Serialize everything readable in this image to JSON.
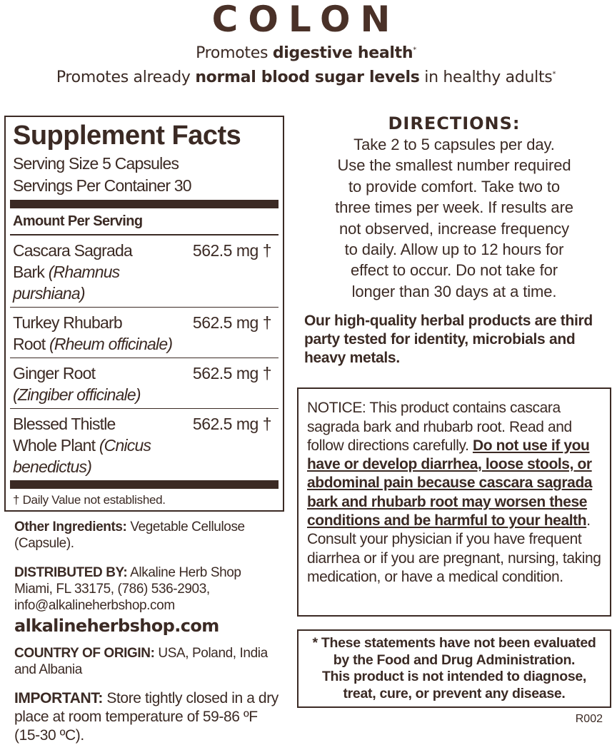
{
  "title": "COLON",
  "taglines": [
    {
      "pre": "Promotes ",
      "bold": "digestive health",
      "post": "",
      "mark": "*"
    },
    {
      "pre": "Promotes already ",
      "bold": "normal blood sugar levels",
      "post": " in healthy adults",
      "mark": "*"
    }
  ],
  "facts": {
    "heading": "Supplement Facts",
    "serving_size": "Serving Size 5 Capsules",
    "servings_per_container": "Servings Per Container 30",
    "amount_header": "Amount Per Serving",
    "ingredients": [
      {
        "name": "Cascara Sagrada",
        "name2": "Bark ",
        "latin": "(Rhamnus purshiana)",
        "amount": "562.5 mg †"
      },
      {
        "name": "Turkey Rhubarb",
        "name2": "Root ",
        "latin": "(Rheum officinale)",
        "amount": "562.5 mg †"
      },
      {
        "name": "Ginger Root",
        "name2": "",
        "latin": "(Zingiber officinale)",
        "amount": "562.5 mg †"
      },
      {
        "name": "Blessed Thistle",
        "name2": "Whole Plant ",
        "latin": "(Cnicus benedictus)",
        "amount": "562.5 mg †"
      }
    ],
    "footnote": "† Daily Value not established."
  },
  "other": {
    "label": "Other Ingredients:",
    "text": " Vegetable Cellulose (Capsule)."
  },
  "distributor": {
    "label": "DISTRIBUTED BY:",
    "text": " Alkaline Herb Shop Miami, FL 33175, (786) 536-2903, info@alkalineherbshop.com"
  },
  "website": "alkalineherbshop.com",
  "origin": {
    "label": "COUNTRY OF ORIGIN:",
    "text": " USA, Poland, India and Albania"
  },
  "important": {
    "label": "IMPORTANT:",
    "text": " Store tightly closed in a dry place at room temperature of 59-86 ºF (15-30 ºC)."
  },
  "directions": {
    "heading": "DIRECTIONS:",
    "lines": [
      "Take 2 to 5 capsules per day.",
      "Use the smallest number required",
      "to provide comfort. Take two to",
      "three times per week. If results are",
      "not observed, increase frequency",
      "to daily. Allow up to 12 hours for",
      "effect to occur. Do not take for",
      "longer than 30 days at a time."
    ]
  },
  "quality": "Our high-quality herbal products are third party tested for identity, microbials and heavy metals.",
  "notice": {
    "pre": "NOTICE: This product contains cascara sagrada bark and rhubarb root. Read and follow directions carefully. ",
    "warning": "Do not use if you have or develop diarrhea, loose stools, or abdominal pain because cascara sagrada bark and rhubarb root may worsen these conditions and be harmful to your health",
    "post": ". Consult your physician if you have frequent diarrhea or if you are pregnant, nursing, taking medication, or have a medical condition."
  },
  "fda": [
    "* These statements have not been evaluated",
    "by the Food and Drug Administration.",
    "This product is not intended to diagnose,",
    "treat, cure, or prevent any disease."
  ],
  "code": "R002"
}
